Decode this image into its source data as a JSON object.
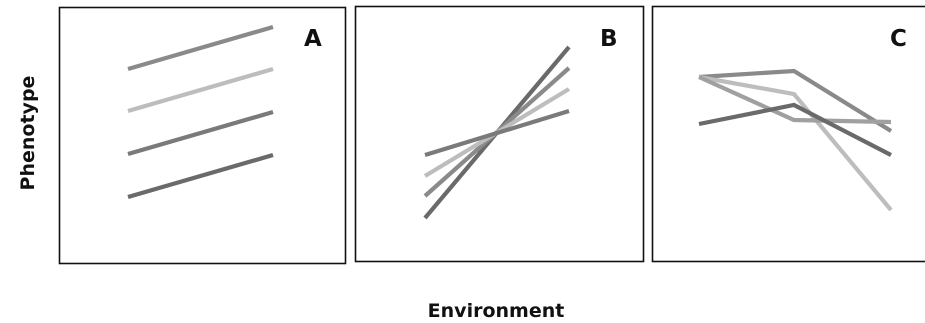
{
  "figure": {
    "y_axis_label": "Phenotype",
    "x_axis_label": "Environment",
    "panels": [
      {
        "label": "A",
        "lines": [
          {
            "color": "#8a8a8a"
          },
          {
            "color": "#bdbdbd"
          },
          {
            "color": "#7a7a7a"
          },
          {
            "color": "#6a6a6a"
          }
        ]
      },
      {
        "label": "B",
        "lines": [
          {
            "color": "#6a6a6a"
          },
          {
            "color": "#8a8a8a"
          },
          {
            "color": "#bdbdbd"
          },
          {
            "color": "#7a7a7a"
          }
        ]
      },
      {
        "label": "C",
        "lines": [
          {
            "color": "#8a8a8a"
          },
          {
            "color": "#bdbdbd"
          },
          {
            "color": "#a0a0a0"
          },
          {
            "color": "#6a6a6a"
          }
        ]
      }
    ]
  }
}
